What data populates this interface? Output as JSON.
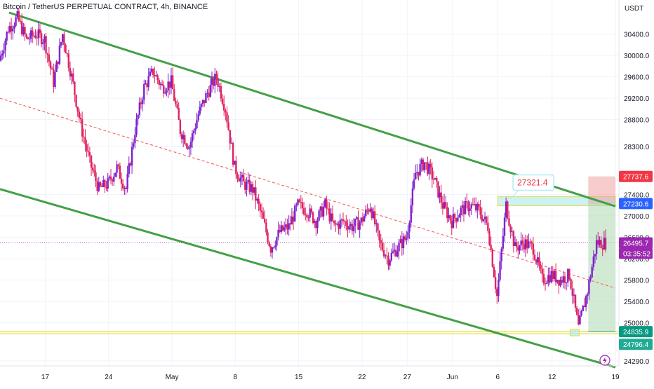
{
  "chart_data": {
    "type": "candlestick",
    "title": "Bitcoin / TetherUS PERPETUAL CONTRACT, 4h, BINANCE",
    "currency": "USDT",
    "ylim": [
      24100,
      30850
    ],
    "y_ticks": [
      24290.0,
      25000.0,
      25400.0,
      25800.0,
      26200.0,
      26600.0,
      27000.0,
      27400.0,
      28300.0,
      28800.0,
      29200.0,
      29600.0,
      30000.0,
      30400.0
    ],
    "y_tick_labels": [
      "24290.0",
      "25000.0",
      "25400.0",
      "25800.0",
      "26200.0",
      "26600.0",
      "27000.0",
      "27400.0",
      "28300.0",
      "28800.0",
      "29200.0",
      "29600.0",
      "30000.0",
      "30400.0"
    ],
    "x_ticks": [
      "17",
      "24",
      "May",
      "8",
      "15",
      "22",
      "27",
      "Jun",
      "6",
      "12",
      "19"
    ],
    "x_tick_dates": [
      "2023-04-17",
      "2023-04-24",
      "2023-05-01",
      "2023-05-08",
      "2023-05-15",
      "2023-05-22",
      "2023-05-27",
      "2023-06-01",
      "2023-06-06",
      "2023-06-12",
      "2023-06-19"
    ],
    "x_start": "2023-04-12",
    "x_end": "2023-06-19",
    "colors": {
      "up": "#7e22ce",
      "down": "#e0245e",
      "channel": "#43a047",
      "midline": "#ef5350",
      "zone": "#e8e04a",
      "price_tag": "#9c27b0"
    },
    "price_series": [
      {
        "t": "2023-04-12",
        "p": 29900
      },
      {
        "t": "2023-04-13",
        "p": 30500
      },
      {
        "t": "2023-04-14",
        "p": 30700
      },
      {
        "t": "2023-04-15",
        "p": 30300
      },
      {
        "t": "2023-04-16",
        "p": 30400
      },
      {
        "t": "2023-04-17",
        "p": 30300
      },
      {
        "t": "2023-04-18",
        "p": 29500
      },
      {
        "t": "2023-04-19",
        "p": 30400
      },
      {
        "t": "2023-04-20",
        "p": 29600
      },
      {
        "t": "2023-04-21",
        "p": 28700
      },
      {
        "t": "2023-04-22",
        "p": 28000
      },
      {
        "t": "2023-04-23",
        "p": 27500
      },
      {
        "t": "2023-04-24",
        "p": 27600
      },
      {
        "t": "2023-04-25",
        "p": 27900
      },
      {
        "t": "2023-04-26",
        "p": 27500
      },
      {
        "t": "2023-04-27",
        "p": 28600
      },
      {
        "t": "2023-04-28",
        "p": 29400
      },
      {
        "t": "2023-04-29",
        "p": 29700
      },
      {
        "t": "2023-04-30",
        "p": 29400
      },
      {
        "t": "2023-05-01",
        "p": 29500
      },
      {
        "t": "2023-05-02",
        "p": 28600
      },
      {
        "t": "2023-05-03",
        "p": 28300
      },
      {
        "t": "2023-05-04",
        "p": 28900
      },
      {
        "t": "2023-05-05",
        "p": 29300
      },
      {
        "t": "2023-05-06",
        "p": 29600
      },
      {
        "t": "2023-05-07",
        "p": 29000
      },
      {
        "t": "2023-05-08",
        "p": 27900
      },
      {
        "t": "2023-05-09",
        "p": 27600
      },
      {
        "t": "2023-05-10",
        "p": 27500
      },
      {
        "t": "2023-05-11",
        "p": 27000
      },
      {
        "t": "2023-05-12",
        "p": 26400
      },
      {
        "t": "2023-05-13",
        "p": 26700
      },
      {
        "t": "2023-05-14",
        "p": 26800
      },
      {
        "t": "2023-05-15",
        "p": 27200
      },
      {
        "t": "2023-05-16",
        "p": 27100
      },
      {
        "t": "2023-05-17",
        "p": 26900
      },
      {
        "t": "2023-05-18",
        "p": 27200
      },
      {
        "t": "2023-05-19",
        "p": 26800
      },
      {
        "t": "2023-05-20",
        "p": 26900
      },
      {
        "t": "2023-05-21",
        "p": 26800
      },
      {
        "t": "2023-05-22",
        "p": 26900
      },
      {
        "t": "2023-05-23",
        "p": 27200
      },
      {
        "t": "2023-05-24",
        "p": 26500
      },
      {
        "t": "2023-05-25",
        "p": 26200
      },
      {
        "t": "2023-05-26",
        "p": 26400
      },
      {
        "t": "2023-05-27",
        "p": 26600
      },
      {
        "t": "2023-05-28",
        "p": 27800
      },
      {
        "t": "2023-05-29",
        "p": 28000
      },
      {
        "t": "2023-05-30",
        "p": 27700
      },
      {
        "t": "2023-05-31",
        "p": 27200
      },
      {
        "t": "2023-06-01",
        "p": 26900
      },
      {
        "t": "2023-06-02",
        "p": 27100
      },
      {
        "t": "2023-06-03",
        "p": 27200
      },
      {
        "t": "2023-06-04",
        "p": 27100
      },
      {
        "t": "2023-06-05",
        "p": 26800
      },
      {
        "t": "2023-06-06",
        "p": 25500
      },
      {
        "t": "2023-06-07",
        "p": 27200
      },
      {
        "t": "2023-06-08",
        "p": 26400
      },
      {
        "t": "2023-06-09",
        "p": 26500
      },
      {
        "t": "2023-06-10",
        "p": 26400
      },
      {
        "t": "2023-06-11",
        "p": 25800
      },
      {
        "t": "2023-06-12",
        "p": 25900
      },
      {
        "t": "2023-06-13",
        "p": 25800
      },
      {
        "t": "2023-06-14",
        "p": 25900
      },
      {
        "t": "2023-06-15",
        "p": 24900
      },
      {
        "t": "2023-06-16",
        "p": 25600
      },
      {
        "t": "2023-06-17",
        "p": 26500
      },
      {
        "t": "2023-06-18",
        "p": 26495
      }
    ],
    "channel": {
      "upper": [
        {
          "t": "2023-04-13",
          "p": 30800
        },
        {
          "t": "2023-06-19",
          "p": 27180
        }
      ],
      "lower": [
        {
          "t": "2023-04-12",
          "p": 27500
        },
        {
          "t": "2023-06-19",
          "p": 24170
        }
      ],
      "midline": [
        {
          "t": "2023-04-12",
          "p": 29200
        },
        {
          "t": "2023-06-19",
          "p": 25650
        }
      ]
    },
    "zones": [
      {
        "label": "resistance-zone",
        "from_t": "2023-06-06",
        "to_t": "2023-06-19",
        "low": 27230.6,
        "high": 27321.4
      },
      {
        "label": "support-line-upper",
        "from_t": "2023-04-12",
        "to_t": "2023-06-19",
        "p": 24835.9
      },
      {
        "label": "support-line-lower",
        "from_t": "2023-04-12",
        "to_t": "2023-06-19",
        "p": 24796.4
      },
      {
        "label": "entry-zone",
        "from_t": "2023-06-14",
        "to_t": "2023-06-15",
        "low": 24796.4,
        "high": 24835.9
      }
    ],
    "position": {
      "entry": 24835.9,
      "target": 27230.6,
      "stop": 27737.6,
      "from_t": "2023-06-16",
      "to_t": "2023-06-19"
    },
    "annotation": {
      "label": "27321.4",
      "p": 27321.4,
      "t": "2023-06-08"
    },
    "price_tags": [
      {
        "value": "27737.6",
        "p": 27737.6,
        "color": "#f23645"
      },
      {
        "value": "27230.6",
        "p": 27230.6,
        "color": "#2962ff"
      },
      {
        "value": "26495.7",
        "p": 26495.7,
        "color": "#9c27b0"
      },
      {
        "value": "03:35:52",
        "p": 26495.7,
        "color": "#9c27b0",
        "offset": 1
      },
      {
        "value": "24835.9",
        "p": 24835.9,
        "color": "#089981"
      },
      {
        "value": "24796.4",
        "p": 24796.4,
        "color": "#22ab94",
        "offset": 1
      }
    ],
    "last_price": 26495.7,
    "countdown": "03:35:52"
  }
}
